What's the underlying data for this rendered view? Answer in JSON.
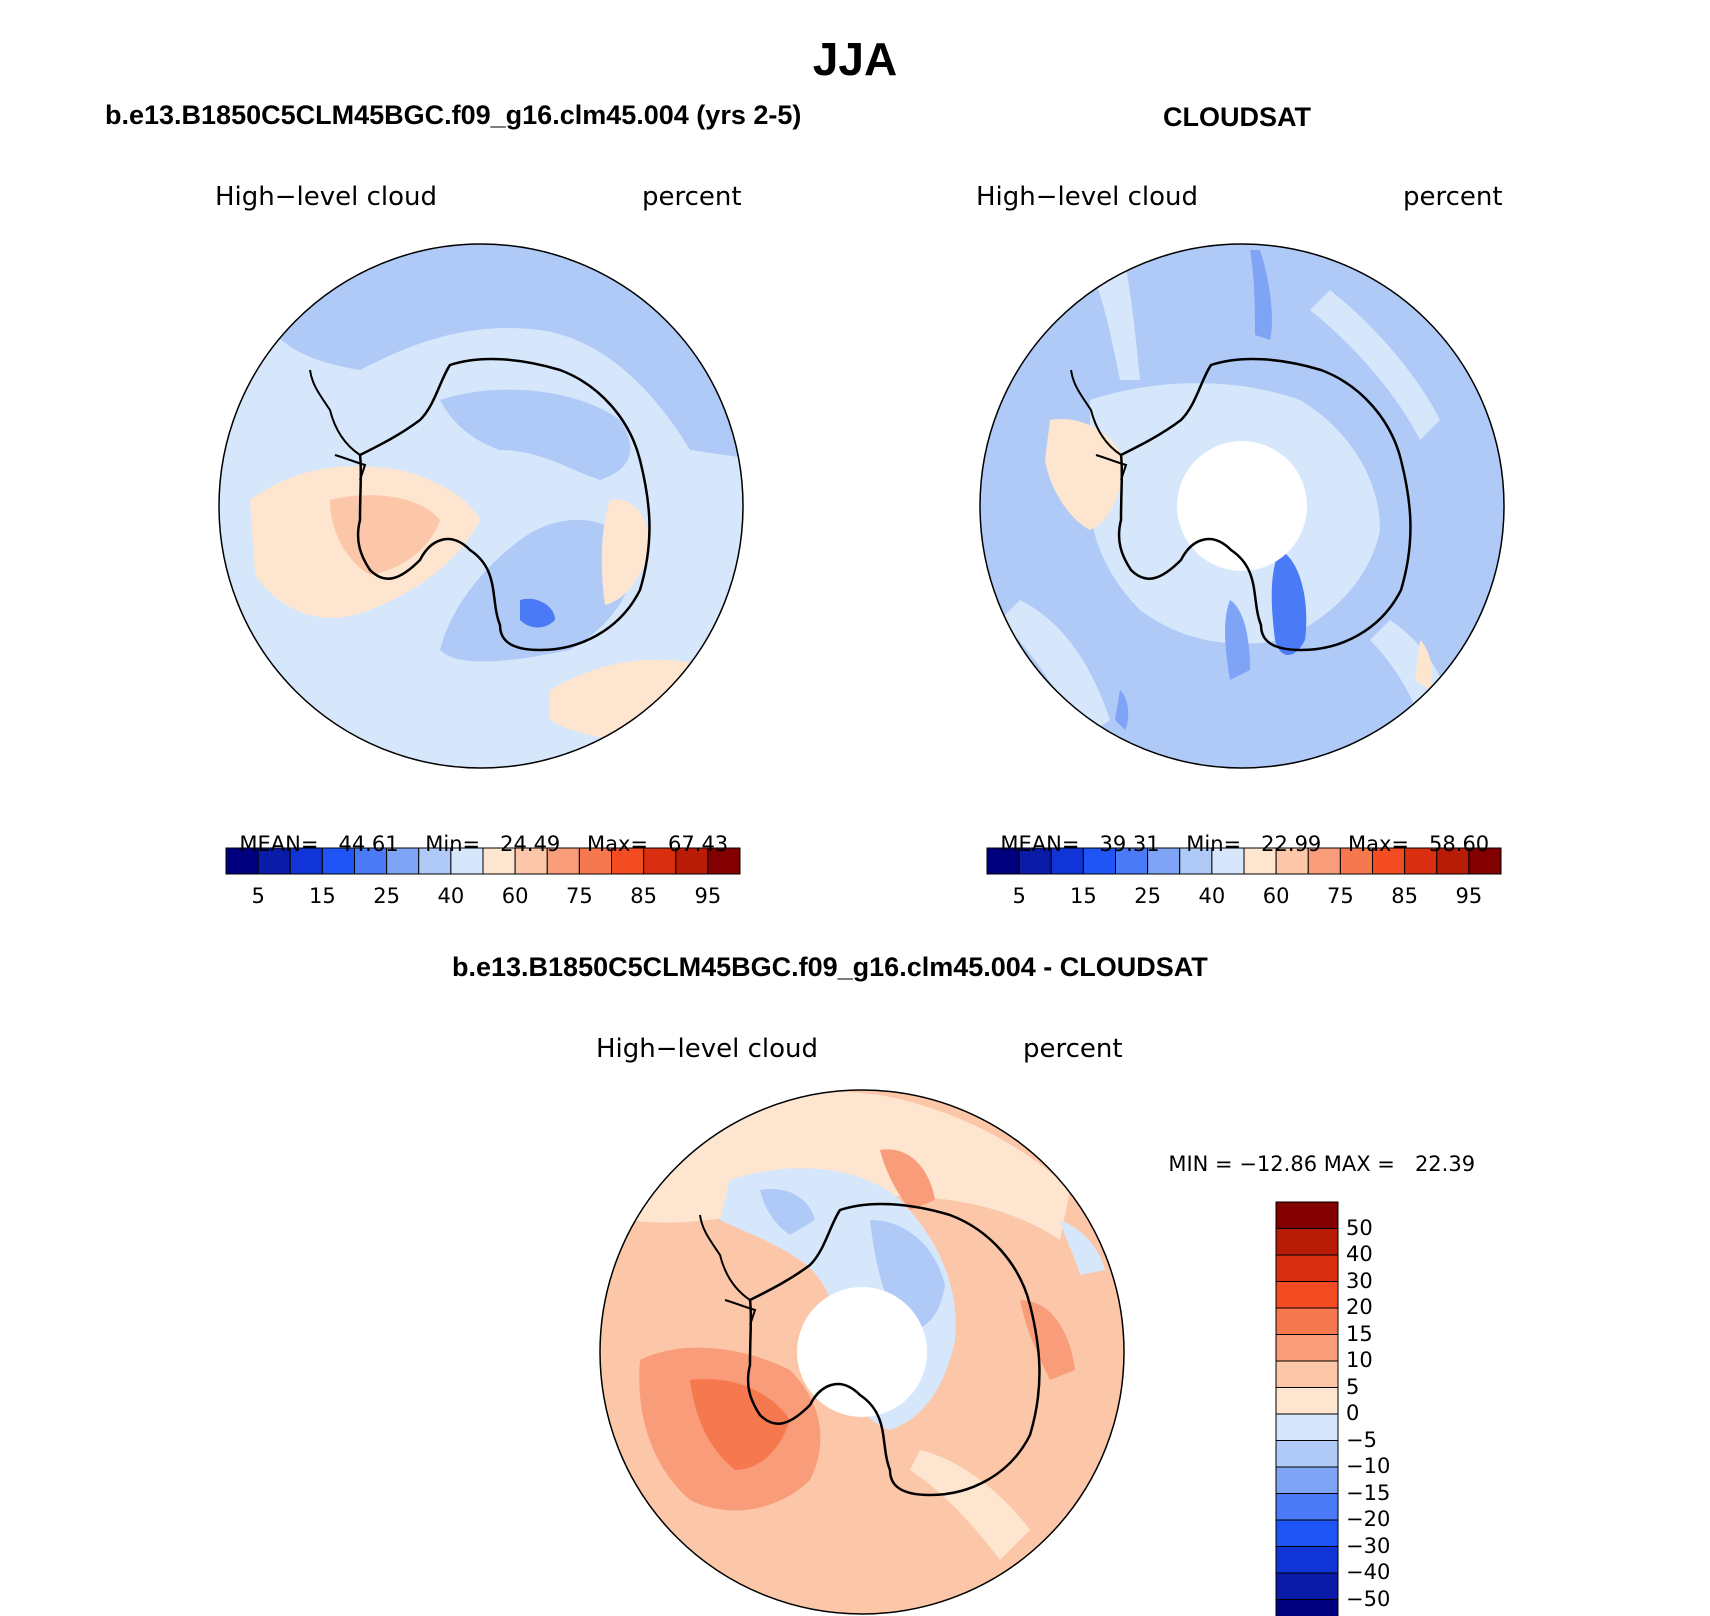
{
  "page_title": "JJA",
  "panels": [
    {
      "title": "b.e13.B1850C5CLM45BGC.f09_g16.clm45.004 (yrs 2-5)",
      "variable": "High−level cloud",
      "units": "percent",
      "stats": {
        "mean_label": "MEAN=",
        "mean": "44.61",
        "min_label": "Min=",
        "min": "24.49",
        "max_label": "Max=",
        "max": "67.43"
      }
    },
    {
      "title": "CLOUDSAT",
      "variable": "High−level cloud",
      "units": "percent",
      "stats": {
        "mean_label": "MEAN=",
        "mean": "39.31",
        "min_label": "Min=",
        "min": "22.99",
        "max_label": "Max=",
        "max": "58.60"
      }
    },
    {
      "title": "b.e13.B1850C5CLM45BGC.f09_g16.clm45.004 - CLOUDSAT",
      "variable": "High−level cloud",
      "units": "percent",
      "stats": {
        "min_label": "MIN =",
        "min": "−12.86",
        "max_label": "MAX =",
        "max": "22.39"
      }
    }
  ],
  "abs_colorbar": {
    "colors": [
      "#00007f",
      "#0a1ba8",
      "#1034d6",
      "#1f55f5",
      "#4a7af5",
      "#7fa3f5",
      "#b0caf8",
      "#d6e7fb",
      "#fde5d0",
      "#fcc7a8",
      "#f99c79",
      "#f6784f",
      "#f34b22",
      "#d92f10",
      "#b81c07",
      "#820000"
    ],
    "tick_labels": [
      "5",
      "15",
      "25",
      "40",
      "60",
      "75",
      "85",
      "95"
    ]
  },
  "diff_colorbar": {
    "colors": [
      "#820000",
      "#b81c07",
      "#d92f10",
      "#f34b22",
      "#f6784f",
      "#f99c79",
      "#fcc7a8",
      "#fde5d0",
      "#d6e7fb",
      "#b0caf8",
      "#7fa3f5",
      "#4a7af5",
      "#1f55f5",
      "#1034d6",
      "#0a1ba8",
      "#00007f"
    ],
    "tick_labels": [
      "50",
      "40",
      "30",
      "20",
      "15",
      "10",
      "5",
      "0",
      "−5",
      "−10",
      "−15",
      "−20",
      "−30",
      "−40",
      "−50"
    ]
  },
  "map_fill_colors": {
    "light_blue": "#d6e7fb",
    "mid_blue": "#b0caf8",
    "blue": "#7fa3f5",
    "strong_blue": "#4a7af5",
    "light_orange": "#fde5d0",
    "orange": "#fcc7a8",
    "deep_orange": "#f99c79",
    "strong_orange": "#f6784f"
  }
}
